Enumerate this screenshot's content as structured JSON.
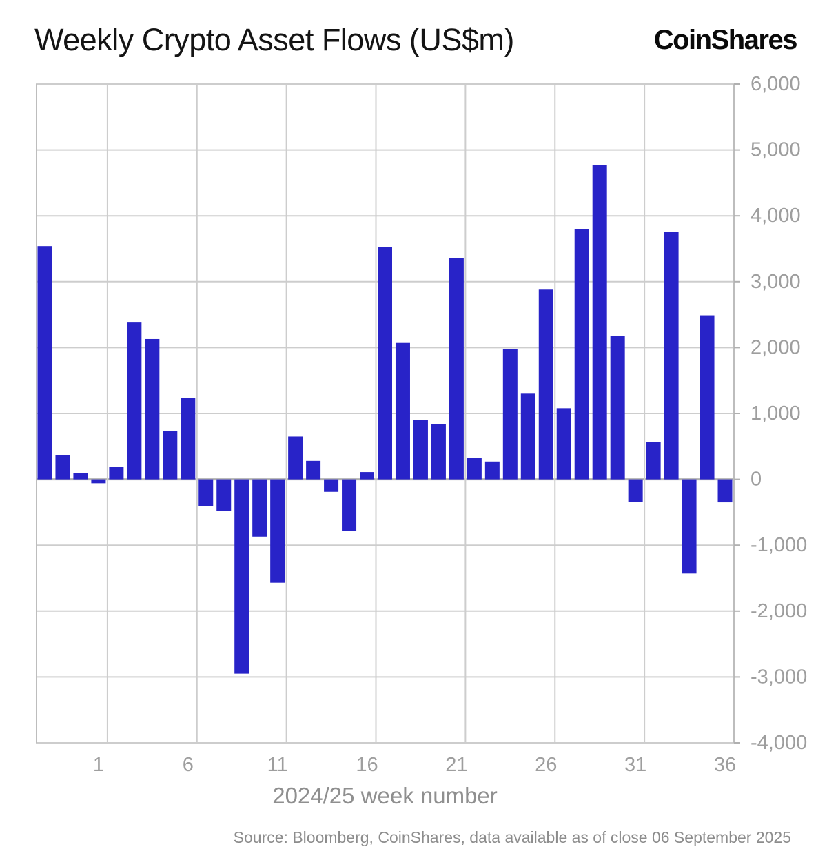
{
  "header": {
    "title": "Weekly Crypto Asset Flows (US$m)",
    "logo": "CoinShares"
  },
  "chart_data": {
    "type": "bar",
    "title": "Weekly Crypto Asset Flows (US$m)",
    "xlabel": "2024/25 week number",
    "ylabel": "",
    "ylim": [
      -4000,
      6000
    ],
    "grid": true,
    "legend_position": "none",
    "bar_color": "#2823C8",
    "grid_color": "#cdcdcd",
    "zero_line_color": "#b0b0b0",
    "border_color": "#bdbdbd",
    "tick_label_color": "#9e9e9e",
    "weeks": [
      50,
      51,
      52,
      1,
      2,
      3,
      4,
      5,
      6,
      7,
      8,
      9,
      10,
      11,
      12,
      13,
      14,
      15,
      16,
      17,
      18,
      19,
      20,
      21,
      22,
      23,
      24,
      25,
      26,
      27,
      28,
      29,
      30,
      31,
      32,
      33,
      34,
      35,
      36
    ],
    "values": [
      3540,
      370,
      100,
      -60,
      190,
      2390,
      2130,
      730,
      1240,
      -410,
      -480,
      -2950,
      -870,
      -1570,
      650,
      280,
      -190,
      -780,
      110,
      3530,
      2070,
      900,
      840,
      3360,
      320,
      270,
      1980,
      1300,
      2880,
      1080,
      3800,
      4770,
      2180,
      -340,
      570,
      3760,
      -1430,
      2490,
      -350
    ],
    "yticks": {
      "values": [
        6000,
        5000,
        4000,
        3000,
        2000,
        1000,
        0,
        -1000,
        -2000,
        -3000,
        -4000
      ],
      "labels": [
        "6,000",
        "5,000",
        "4,000",
        "3,000",
        "2,000",
        "1,000",
        "0",
        "-1,000",
        "-2,000",
        "-3,000",
        "-4,000"
      ]
    },
    "xticks": {
      "slots": [
        3,
        8,
        13,
        18,
        23,
        28,
        33,
        38
      ],
      "labels": [
        "1",
        "6",
        "11",
        "16",
        "21",
        "26",
        "31",
        "36"
      ]
    }
  },
  "footer": {
    "source": "Source: Bloomberg, CoinShares, data available as of close 06 September 2025"
  }
}
